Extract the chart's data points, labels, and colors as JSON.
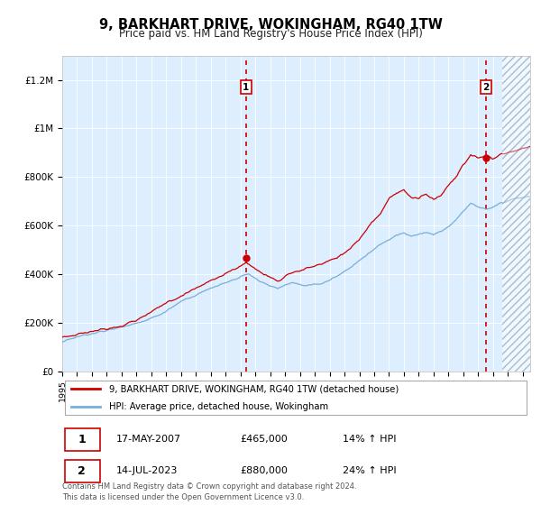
{
  "title": "9, BARKHART DRIVE, WOKINGHAM, RG40 1TW",
  "subtitle": "Price paid vs. HM Land Registry's House Price Index (HPI)",
  "legend_line1": "9, BARKHART DRIVE, WOKINGHAM, RG40 1TW (detached house)",
  "legend_line2": "HPI: Average price, detached house, Wokingham",
  "annotation1_date": "17-MAY-2007",
  "annotation1_price": "£465,000",
  "annotation1_hpi": "14% ↑ HPI",
  "annotation1_year": 2007.37,
  "annotation1_value": 465000,
  "annotation2_date": "14-JUL-2023",
  "annotation2_price": "£880,000",
  "annotation2_hpi": "24% ↑ HPI",
  "annotation2_year": 2023.54,
  "annotation2_value": 880000,
  "footer": "Contains HM Land Registry data © Crown copyright and database right 2024.\nThis data is licensed under the Open Government Licence v3.0.",
  "ylim_max": 1300000,
  "xlim_start": 1995.0,
  "xlim_end": 2026.5,
  "red_color": "#cc0000",
  "blue_color": "#7aaed6",
  "bg_color": "#ddeeff",
  "future_start": 2024.6,
  "title_fontsize": 10.5,
  "subtitle_fontsize": 8.5,
  "yticks": [
    0,
    200000,
    400000,
    600000,
    800000,
    1000000,
    1200000
  ],
  "ytick_labels": [
    "£0",
    "£200K",
    "£400K",
    "£600K",
    "£800K",
    "£1M",
    "£1.2M"
  ]
}
